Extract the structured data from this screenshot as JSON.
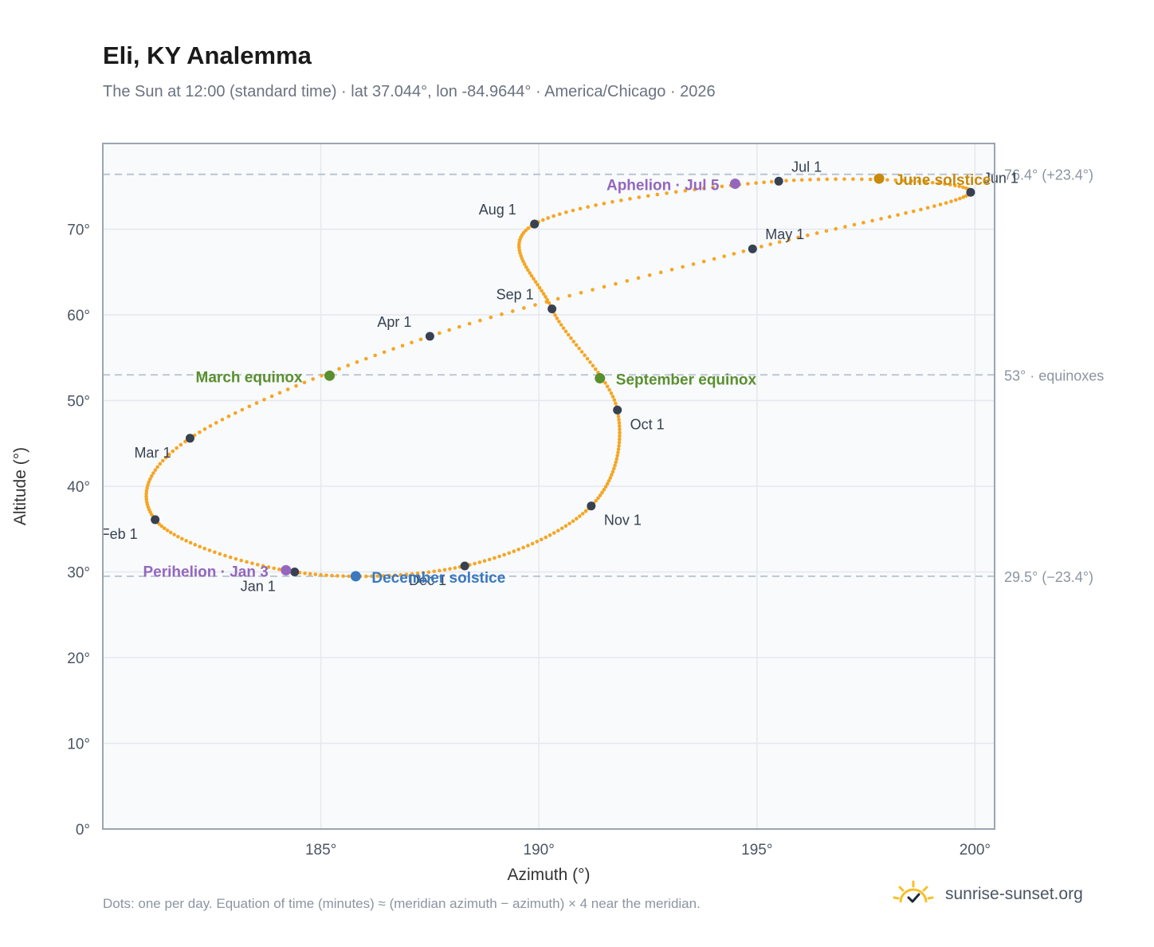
{
  "header": {
    "title": "Eli, KY Analemma",
    "subtitle": "The Sun at 12:00 (standard time) · lat 37.044°, lon -84.9644° · America/Chicago · 2026"
  },
  "footer": {
    "note": "Dots: one per day. Equation of time (minutes) ≈ (meridian azimuth − azimuth) × 4 near the meridian.",
    "brand": "sunrise-sunset.org",
    "brand_icon": "sun-check-icon"
  },
  "chart_data": {
    "type": "scatter",
    "xlabel": "Azimuth (°)",
    "ylabel": "Altitude (°)",
    "xlim": [
      180.0,
      200.45
    ],
    "ylim": [
      0,
      80
    ],
    "xticks": [
      185,
      190,
      195,
      200
    ],
    "xtick_labels": [
      "185°",
      "190°",
      "195°",
      "200°"
    ],
    "yticks": [
      0,
      10,
      20,
      30,
      40,
      50,
      60,
      70
    ],
    "ytick_labels": [
      "0°",
      "10°",
      "20°",
      "30°",
      "40°",
      "50°",
      "60°",
      "70°"
    ],
    "grid": true,
    "colors": {
      "path": "#f5a623",
      "month_marker": "#374151",
      "equinox": "#5a8f2e",
      "june_solstice": "#c88a0a",
      "december_solstice": "#3a78c0",
      "apsis": "#9467bd",
      "reference_line": "#b6c2cf",
      "plot_background": "#f8fafc",
      "plot_border": "#9aa5b1"
    },
    "reference_lines": [
      {
        "y": 76.4,
        "label": "76.4° (+23.4°)"
      },
      {
        "y": 53.0,
        "label": "53° · equinoxes"
      },
      {
        "y": 29.5,
        "label": "29.5° (−23.4°)"
      }
    ],
    "month_markers": [
      {
        "label": "Jan 1",
        "az": 184.4,
        "alt": 30.0
      },
      {
        "label": "Feb 1",
        "az": 181.2,
        "alt": 36.1
      },
      {
        "label": "Mar 1",
        "az": 182.0,
        "alt": 45.6
      },
      {
        "label": "Apr 1",
        "az": 187.5,
        "alt": 57.5
      },
      {
        "label": "May 1",
        "az": 194.9,
        "alt": 67.7
      },
      {
        "label": "Jun 1",
        "az": 199.9,
        "alt": 74.3
      },
      {
        "label": "Jul 1",
        "az": 195.5,
        "alt": 75.6
      },
      {
        "label": "Aug 1",
        "az": 189.9,
        "alt": 70.6
      },
      {
        "label": "Sep 1",
        "az": 190.3,
        "alt": 60.7
      },
      {
        "label": "Oct 1",
        "az": 191.8,
        "alt": 48.9
      },
      {
        "label": "Nov 1",
        "az": 191.2,
        "alt": 37.7
      },
      {
        "label": "Dec 1",
        "az": 188.3,
        "alt": 30.7
      }
    ],
    "events": [
      {
        "label": "March equinox",
        "az": 185.2,
        "alt": 52.9,
        "kind": "equinox"
      },
      {
        "label": "September equinox",
        "az": 191.4,
        "alt": 52.6,
        "kind": "equinox"
      },
      {
        "label": "June solstice",
        "az": 197.8,
        "alt": 75.9,
        "kind": "june_solstice"
      },
      {
        "label": "December solstice",
        "az": 185.8,
        "alt": 29.5,
        "kind": "december_solstice"
      },
      {
        "label": "Perihelion · Jan 3",
        "az": 184.2,
        "alt": 30.2,
        "kind": "apsis"
      },
      {
        "label": "Aphelion · Jul 5",
        "az": 194.5,
        "alt": 75.3,
        "kind": "apsis"
      }
    ]
  }
}
